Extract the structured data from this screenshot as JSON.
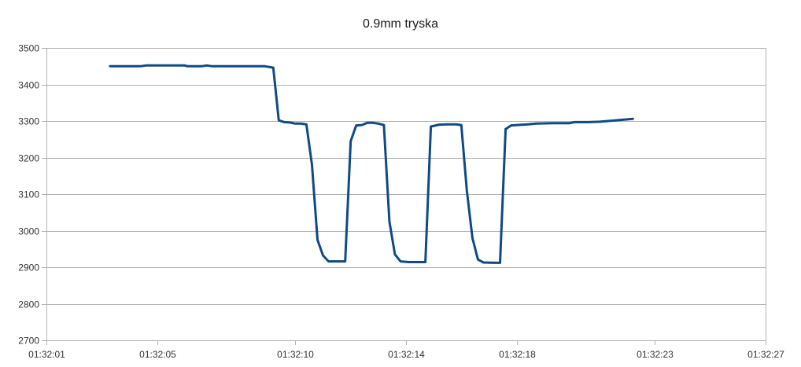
{
  "chart_data": {
    "type": "line",
    "title": "0.9mm tryska",
    "xlabel": "",
    "ylabel": "",
    "xlim": [
      "01:32:01",
      "01:32:27"
    ],
    "ylim": [
      2700,
      3500
    ],
    "y_ticks": [
      2700,
      2800,
      2900,
      3000,
      3100,
      3200,
      3300,
      3400,
      3500
    ],
    "x_ticks": [
      "01:32:01",
      "01:32:05",
      "01:32:10",
      "01:32:14",
      "01:32:18",
      "01:32:23",
      "01:32:27"
    ],
    "grid": true,
    "legend": "none",
    "colors": {
      "line": "#0e4a84",
      "grid": "#b3b3b3"
    },
    "series": [
      {
        "name": "",
        "points": [
          [
            "01:32:03.3",
            3450
          ],
          [
            "01:32:03.8",
            3450
          ],
          [
            "01:32:04.4",
            3450
          ],
          [
            "01:32:04.6",
            3452
          ],
          [
            "01:32:05.3",
            3452
          ],
          [
            "01:32:06.0",
            3452
          ],
          [
            "01:32:06.1",
            3450
          ],
          [
            "01:32:06.6",
            3450
          ],
          [
            "01:32:06.8",
            3452
          ],
          [
            "01:32:07.0",
            3450
          ],
          [
            "01:32:07.6",
            3450
          ],
          [
            "01:32:08.2",
            3450
          ],
          [
            "01:32:08.6",
            3450
          ],
          [
            "01:32:08.9",
            3450
          ],
          [
            "01:32:09.2",
            3446
          ],
          [
            "01:32:09.4",
            3302
          ],
          [
            "01:32:09.6",
            3297
          ],
          [
            "01:32:09.8",
            3296
          ],
          [
            "01:32:10.0",
            3293
          ],
          [
            "01:32:10.2",
            3293
          ],
          [
            "01:32:10.4",
            3291
          ],
          [
            "01:32:10.6",
            3180
          ],
          [
            "01:32:10.8",
            2975
          ],
          [
            "01:32:11.0",
            2932
          ],
          [
            "01:32:11.2",
            2916
          ],
          [
            "01:32:11.5",
            2916
          ],
          [
            "01:32:11.8",
            2916
          ],
          [
            "01:32:12.0",
            3245
          ],
          [
            "01:32:12.2",
            3288
          ],
          [
            "01:32:12.4",
            3289
          ],
          [
            "01:32:12.6",
            3295
          ],
          [
            "01:32:12.8",
            3295
          ],
          [
            "01:32:13.0",
            3293
          ],
          [
            "01:32:13.2",
            3289
          ],
          [
            "01:32:13.4",
            3025
          ],
          [
            "01:32:13.6",
            2935
          ],
          [
            "01:32:13.8",
            2916
          ],
          [
            "01:32:14.1",
            2914
          ],
          [
            "01:32:14.4",
            2914
          ],
          [
            "01:32:14.7",
            2914
          ],
          [
            "01:32:14.9",
            3285
          ],
          [
            "01:32:15.2",
            3290
          ],
          [
            "01:32:15.5",
            3291
          ],
          [
            "01:32:15.8",
            3291
          ],
          [
            "01:32:16.0",
            3289
          ],
          [
            "01:32:16.2",
            3110
          ],
          [
            "01:32:16.4",
            2980
          ],
          [
            "01:32:16.6",
            2921
          ],
          [
            "01:32:16.8",
            2913
          ],
          [
            "01:32:17.2",
            2912
          ],
          [
            "01:32:17.4",
            2912
          ],
          [
            "01:32:17.6",
            3278
          ],
          [
            "01:32:17.8",
            3288
          ],
          [
            "01:32:18.0",
            3289
          ],
          [
            "01:32:18.4",
            3291
          ],
          [
            "01:32:18.7",
            3293
          ],
          [
            "01:32:19.3",
            3294
          ],
          [
            "01:32:19.9",
            3294
          ],
          [
            "01:32:20.1",
            3297
          ],
          [
            "01:32:20.6",
            3297
          ],
          [
            "01:32:21.0",
            3298
          ],
          [
            "01:32:21.6",
            3302
          ],
          [
            "01:32:22.2",
            3306
          ]
        ]
      }
    ]
  }
}
